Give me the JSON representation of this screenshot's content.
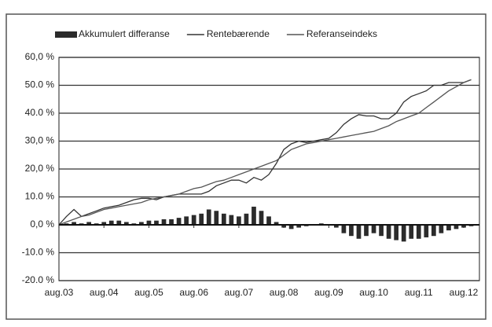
{
  "chart_data": {
    "type": "bar_line",
    "categories": [
      "aug.03",
      null,
      null,
      null,
      null,
      null,
      "aug.04",
      null,
      null,
      null,
      null,
      null,
      "aug.05",
      null,
      null,
      null,
      null,
      null,
      "aug.06",
      null,
      null,
      null,
      null,
      null,
      "aug.07",
      null,
      null,
      null,
      null,
      null,
      "aug.08",
      null,
      null,
      null,
      null,
      null,
      "aug.09",
      null,
      null,
      null,
      null,
      null,
      "aug.10",
      null,
      null,
      null,
      null,
      null,
      "aug.11",
      null,
      null,
      null,
      null,
      null,
      "aug.12",
      null
    ],
    "series": [
      {
        "name": "Akkumulert differanse",
        "type": "bar",
        "color": "#2b2b2b",
        "values": [
          0,
          0.5,
          1,
          0.5,
          1,
          0.5,
          1,
          1.5,
          1.5,
          1,
          0.5,
          1,
          1.5,
          1.5,
          2,
          2,
          2.5,
          3,
          3.5,
          4,
          5.5,
          5,
          4,
          3.5,
          3,
          4,
          6.5,
          5,
          3,
          1,
          -1,
          -1.5,
          -1,
          -0.5,
          0,
          0.5,
          0,
          -1,
          -3,
          -4,
          -5,
          -4,
          -3,
          -4,
          -5,
          -5.5,
          -6,
          -5,
          -5,
          -4.5,
          -4,
          -3,
          -2,
          -1.5,
          -1,
          -0.5
        ]
      },
      {
        "name": "Rentebærende",
        "type": "line",
        "color": "#333333",
        "values": [
          0,
          3,
          5.5,
          3,
          4,
          5,
          6,
          6.5,
          7,
          8,
          9,
          9.5,
          9.5,
          9,
          10,
          10.5,
          11,
          11,
          11,
          11,
          12,
          14,
          15,
          16,
          16,
          15,
          17,
          16,
          18,
          22,
          27,
          29,
          30,
          29.5,
          30,
          30.5,
          31,
          33,
          36,
          38,
          39.5,
          39,
          39,
          38,
          38,
          40,
          44,
          46,
          47,
          48,
          50,
          50,
          51,
          51,
          51,
          52
        ]
      },
      {
        "name": "Referanseindeks",
        "type": "line",
        "color": "#555555",
        "values": [
          0,
          1,
          2,
          3,
          3.5,
          4.5,
          5.5,
          6,
          6.5,
          7,
          7.5,
          8,
          9,
          9.5,
          10,
          10.5,
          11,
          12,
          13,
          13.5,
          14.5,
          15.5,
          16,
          17,
          18,
          19,
          20,
          21,
          22,
          23,
          25,
          27,
          28,
          29,
          29.5,
          30,
          30.5,
          31,
          31.5,
          32,
          32.5,
          33,
          33.5,
          34.5,
          35.5,
          37,
          38,
          39,
          40,
          42,
          44,
          46,
          48,
          49.5,
          51,
          52
        ]
      }
    ],
    "ylim": [
      -20,
      60
    ],
    "yticks": [
      {
        "value": -20,
        "label": "-20.0 %"
      },
      {
        "value": -10,
        "label": "-10.0 %"
      },
      {
        "value": 0,
        "label": "0,0 %"
      },
      {
        "value": 10,
        "label": "10.0 %"
      },
      {
        "value": 20,
        "label": "20,0 %"
      },
      {
        "value": 30,
        "label": "30,0 %"
      },
      {
        "value": 40,
        "label": "40.0 %"
      },
      {
        "value": 50,
        "label": "50.0 %"
      },
      {
        "value": 60,
        "label": "60,0 %"
      }
    ],
    "grid": true,
    "legend": "top"
  }
}
